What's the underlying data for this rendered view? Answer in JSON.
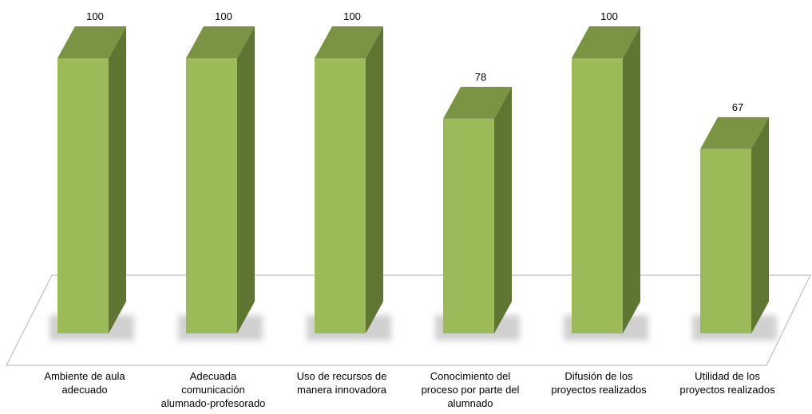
{
  "chart_data": {
    "type": "bar",
    "style": "3d-column",
    "categories": [
      "Ambiente de aula\nadecuado",
      "Adecuada\ncomunicación\nalumnado-profesorado",
      "Uso de recursos de\nmanera innovadora",
      "Conocimiento del\nproceso por parte del\nalumnado",
      "Difusión de los\nproyectos realizados",
      "Utilidad de los\nproyectos realizados"
    ],
    "values": [
      100,
      100,
      100,
      78,
      100,
      67
    ],
    "data_labels": [
      "100",
      "100",
      "100",
      "78",
      "100",
      "67"
    ],
    "ylim": [
      0,
      100
    ],
    "grid": false,
    "legend": "none",
    "colors": {
      "front": "#9bbb59",
      "side": "#5f7632",
      "top": "#7a9444",
      "floor_stroke": "#bfbfbf",
      "shadow": "#d0d0d0"
    }
  }
}
